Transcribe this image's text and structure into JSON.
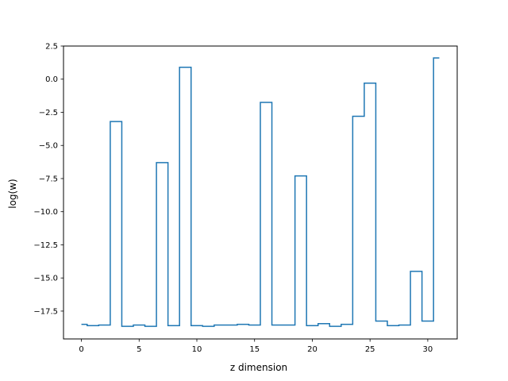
{
  "chart_data": {
    "type": "line",
    "step": "mid",
    "title": "",
    "xlabel": "z dimension",
    "ylabel": "log(w)",
    "xlim": [
      -1.55,
      32.55
    ],
    "ylim": [
      -19.6,
      2.5
    ],
    "xticks": [
      0,
      5,
      10,
      15,
      20,
      25,
      30
    ],
    "xtick_labels": [
      "0",
      "5",
      "10",
      "15",
      "20",
      "25",
      "30"
    ],
    "yticks": [
      2.5,
      0.0,
      -2.5,
      -5.0,
      -7.5,
      -10.0,
      -12.5,
      -15.0,
      -17.5
    ],
    "ytick_labels": [
      "2.5",
      "0.0",
      "−2.5",
      "−5.0",
      "−7.5",
      "−10.0",
      "−12.5",
      "−15.0",
      "−17.5"
    ],
    "grid": false,
    "legend": "none",
    "series": [
      {
        "color": "#1f77b4",
        "x": [
          0,
          1,
          2,
          3,
          4,
          5,
          6,
          7,
          8,
          9,
          10,
          11,
          12,
          13,
          14,
          15,
          16,
          17,
          18,
          19,
          20,
          21,
          22,
          23,
          24,
          25,
          26,
          27,
          28,
          29,
          30,
          31
        ],
        "y": [
          -18.5,
          -18.6,
          -18.55,
          -3.2,
          -18.65,
          -18.55,
          -18.65,
          -6.3,
          -18.6,
          0.9,
          -18.6,
          -18.65,
          -18.55,
          -18.55,
          -18.5,
          -18.55,
          -1.75,
          -18.55,
          -18.55,
          -7.3,
          -18.6,
          -18.45,
          -18.65,
          -18.5,
          -2.8,
          -0.3,
          -18.25,
          -18.6,
          -18.55,
          -14.5,
          -18.25,
          1.6
        ]
      }
    ]
  }
}
